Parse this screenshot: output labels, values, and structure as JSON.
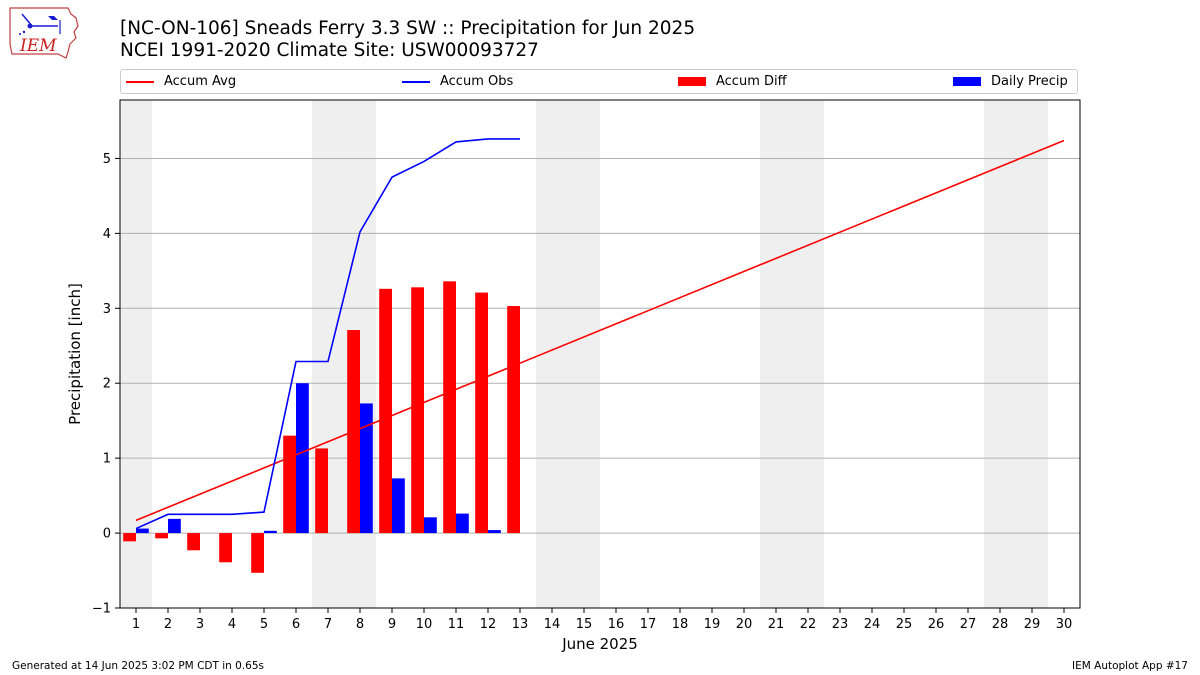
{
  "logo": {
    "text": "IEM"
  },
  "header": {
    "title_line1": "[NC-ON-106] Sneads Ferry 3.3 SW :: Precipitation for Jun 2025",
    "title_line2": "NCEI 1991-2020 Climate Site: USW00093727"
  },
  "legend": {
    "placement": "top",
    "items": [
      {
        "label": "Accum Avg",
        "kind": "line",
        "color": "#ff0000"
      },
      {
        "label": "Accum Obs",
        "kind": "line",
        "color": "#0000ff"
      },
      {
        "label": "Accum Diff",
        "kind": "bar",
        "color": "#ff0000"
      },
      {
        "label": "Daily Precip",
        "kind": "bar",
        "color": "#0000ff"
      }
    ]
  },
  "chart_data": {
    "type": "bar",
    "title": "[NC-ON-106] Sneads Ferry 3.3 SW :: Precipitation for Jun 2025",
    "subtitle": "NCEI 1991-2020 Climate Site: USW00093727",
    "xlabel": "June 2025",
    "ylabel": "Precipitation [inch]",
    "xlim": [
      0.5,
      30.5
    ],
    "ylim": [
      -1.0,
      5.78
    ],
    "yticks": [
      -1,
      0,
      1,
      2,
      3,
      4,
      5
    ],
    "grid": "horizontal",
    "weekend_shading": [
      [
        0.5,
        1.5
      ],
      [
        6.5,
        8.5
      ],
      [
        13.5,
        15.5
      ],
      [
        20.5,
        22.5
      ],
      [
        27.5,
        29.5
      ]
    ],
    "shading_color": "#efefef",
    "days": [
      1,
      2,
      3,
      4,
      5,
      6,
      7,
      8,
      9,
      10,
      11,
      12,
      13,
      14,
      15,
      16,
      17,
      18,
      19,
      20,
      21,
      22,
      23,
      24,
      25,
      26,
      27,
      28,
      29,
      30
    ],
    "series": [
      {
        "name": "Accum Avg",
        "kind": "line",
        "color": "#ff0000",
        "x": [
          1,
          30
        ],
        "values": [
          0.17,
          5.24
        ]
      },
      {
        "name": "Accum Obs",
        "kind": "line",
        "color": "#0000ff",
        "x": [
          1,
          2,
          3,
          4,
          5,
          6,
          7,
          8,
          9,
          10,
          11,
          12,
          13
        ],
        "values": [
          0.06,
          0.25,
          0.25,
          0.25,
          0.28,
          2.29,
          2.29,
          4.02,
          4.75,
          4.96,
          5.22,
          5.26,
          5.26
        ]
      },
      {
        "name": "Accum Diff",
        "kind": "bar",
        "color": "#ff0000",
        "x": [
          1,
          2,
          3,
          4,
          5,
          6,
          7,
          8,
          9,
          10,
          11,
          12,
          13
        ],
        "values": [
          -0.11,
          -0.07,
          -0.23,
          -0.39,
          -0.53,
          1.3,
          1.13,
          2.71,
          3.26,
          3.28,
          3.36,
          3.21,
          3.03
        ]
      },
      {
        "name": "Daily Precip",
        "kind": "bar",
        "color": "#0000ff",
        "x": [
          1,
          2,
          3,
          4,
          5,
          6,
          7,
          8,
          9,
          10,
          11,
          12,
          13
        ],
        "values": [
          0.06,
          0.19,
          0,
          0,
          0.03,
          2.0,
          0,
          1.73,
          0.73,
          0.21,
          0.26,
          0.04,
          0
        ]
      }
    ]
  },
  "footer": {
    "generated": "Generated at 14 Jun 2025 3:02 PM CDT in 0.65s",
    "app": "IEM Autoplot App #17"
  }
}
